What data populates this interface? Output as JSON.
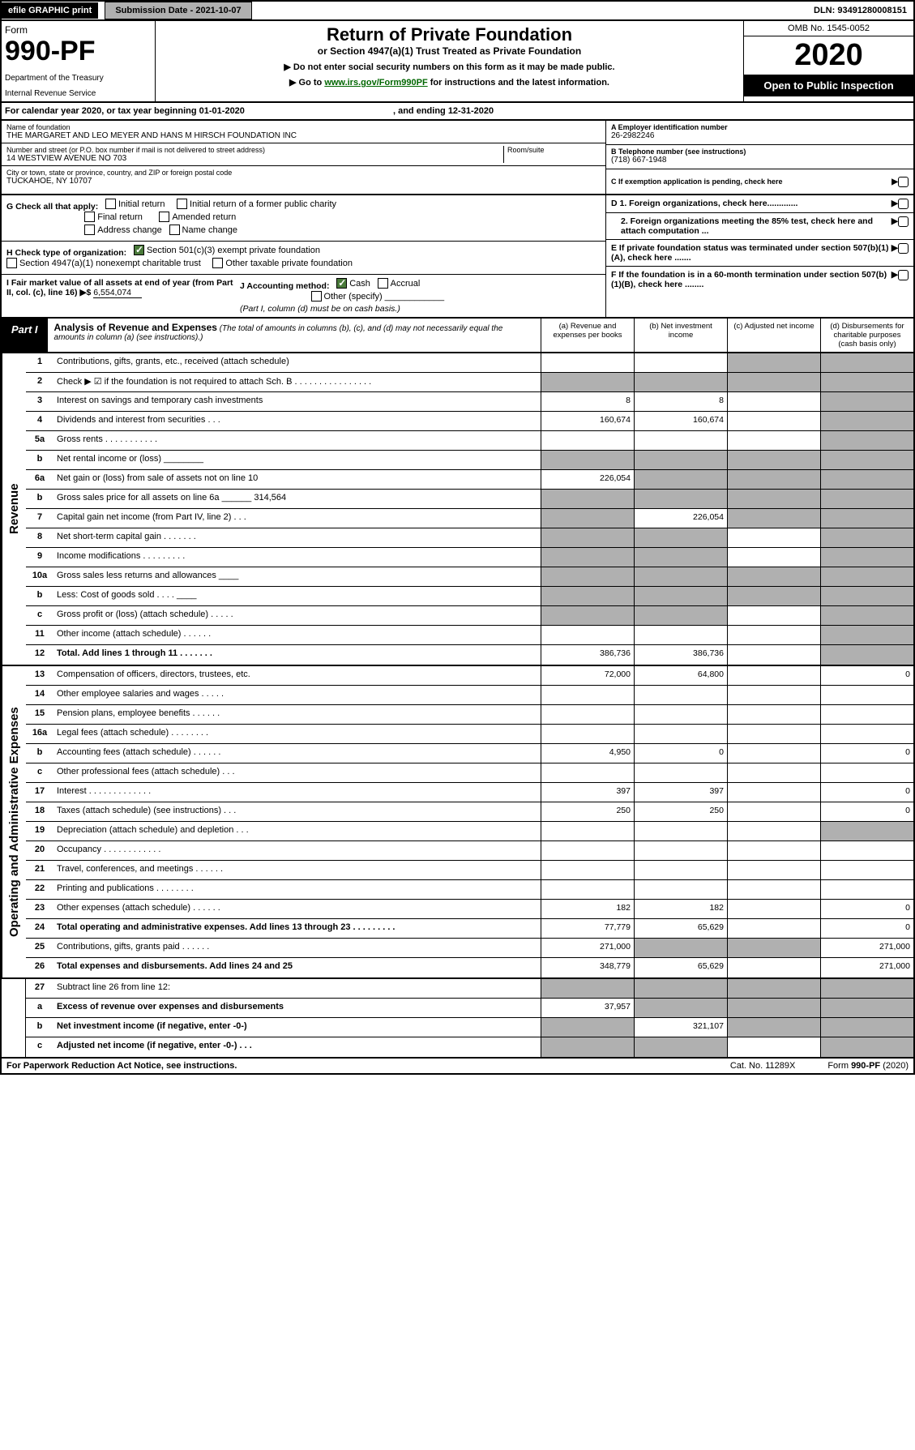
{
  "top": {
    "efile_g": "efile GRAPHIC",
    "print": "print",
    "submission": "Submission Date - 2021-10-07",
    "dln": "DLN: 93491280008151"
  },
  "header": {
    "form_word": "Form",
    "form_num": "990-PF",
    "dept": "Department of the Treasury",
    "irs": "Internal Revenue Service",
    "title": "Return of Private Foundation",
    "subtitle": "or Section 4947(a)(1) Trust Treated as Private Foundation",
    "note1": "▶ Do not enter social security numbers on this form as it may be made public.",
    "note2_pre": "▶ Go to ",
    "note2_link": "www.irs.gov/Form990PF",
    "note2_post": " for instructions and the latest information.",
    "omb": "OMB No. 1545-0052",
    "year": "2020",
    "open": "Open to Public Inspection"
  },
  "cal": "For calendar year 2020, or tax year beginning 01-01-2020",
  "cal_end": ", and ending 12-31-2020",
  "info": {
    "name_lbl": "Name of foundation",
    "name": "THE MARGARET AND LEO MEYER AND HANS M HIRSCH FOUNDATION INC",
    "addr_lbl": "Number and street (or P.O. box number if mail is not delivered to street address)",
    "addr": "14 WESTVIEW AVENUE NO 703",
    "room_lbl": "Room/suite",
    "city_lbl": "City or town, state or province, country, and ZIP or foreign postal code",
    "city": "TUCKAHOE, NY  10707",
    "ein_lbl": "A Employer identification number",
    "ein": "26-2982246",
    "phone_lbl": "B Telephone number (see instructions)",
    "phone": "(718) 667-1948",
    "c_lbl": "C If exemption application is pending, check here"
  },
  "g": {
    "label": "G Check all that apply:",
    "initial": "Initial return",
    "initial_former": "Initial return of a former public charity",
    "final": "Final return",
    "amended": "Amended return",
    "addr_change": "Address change",
    "name_change": "Name change"
  },
  "h": {
    "label": "H Check type of organization:",
    "s501": "Section 501(c)(3) exempt private foundation",
    "s4947": "Section 4947(a)(1) nonexempt charitable trust",
    "other_tax": "Other taxable private foundation"
  },
  "d": {
    "d1": "D 1. Foreign organizations, check here.............",
    "d2": "2. Foreign organizations meeting the 85% test, check here and attach computation ...",
    "e": "E  If private foundation status was terminated under section 507(b)(1)(A), check here .......",
    "f": "F  If the foundation is in a 60-month termination under section 507(b)(1)(B), check here ........"
  },
  "i": {
    "label": "I Fair market value of all assets at end of year (from Part II, col. (c), line 16) ▶$",
    "val": "6,554,074"
  },
  "j": {
    "label": "J Accounting method:",
    "cash": "Cash",
    "accrual": "Accrual",
    "other": "Other (specify)",
    "note": "(Part I, column (d) must be on cash basis.)"
  },
  "part1": {
    "label": "Part I",
    "title": "Analysis of Revenue and Expenses",
    "desc": "(The total of amounts in columns (b), (c), and (d) may not necessarily equal the amounts in column (a) (see instructions).)",
    "col_a": "(a)   Revenue and expenses per books",
    "col_b": "(b)  Net investment income",
    "col_c": "(c)  Adjusted net income",
    "col_d": "(d)  Disbursements for charitable purposes (cash basis only)"
  },
  "side_rev": "Revenue",
  "side_exp": "Operating and Administrative Expenses",
  "rows": [
    {
      "n": "1",
      "l": "Contributions, gifts, grants, etc., received (attach schedule)",
      "a": "",
      "b": "",
      "c": "s",
      "d": "s"
    },
    {
      "n": "2",
      "l": "Check ▶ ☑ if the foundation is not required to attach Sch. B   .  .  .  .  .  .  .  .  .  .  .  .  .  .  .  .",
      "a": "s",
      "b": "s",
      "c": "s",
      "d": "s"
    },
    {
      "n": "3",
      "l": "Interest on savings and temporary cash investments",
      "a": "8",
      "b": "8",
      "c": "",
      "d": "s"
    },
    {
      "n": "4",
      "l": "Dividends and interest from securities   .  .  .",
      "a": "160,674",
      "b": "160,674",
      "c": "",
      "d": "s"
    },
    {
      "n": "5a",
      "l": "Gross rents   .  .  .  .  .  .  .  .  .  .  .",
      "a": "",
      "b": "",
      "c": "",
      "d": "s"
    },
    {
      "n": "b",
      "l": "Net rental income or (loss)  ________",
      "a": "s",
      "b": "s",
      "c": "s",
      "d": "s"
    },
    {
      "n": "6a",
      "l": "Net gain or (loss) from sale of assets not on line 10",
      "a": "226,054",
      "b": "s",
      "c": "s",
      "d": "s"
    },
    {
      "n": "b",
      "l": "Gross sales price for all assets on line 6a ______ 314,564",
      "a": "s",
      "b": "s",
      "c": "s",
      "d": "s"
    },
    {
      "n": "7",
      "l": "Capital gain net income (from Part IV, line 2)  .  .  .",
      "a": "s",
      "b": "226,054",
      "c": "s",
      "d": "s"
    },
    {
      "n": "8",
      "l": "Net short-term capital gain  .  .  .  .  .  .  .",
      "a": "s",
      "b": "s",
      "c": "",
      "d": "s"
    },
    {
      "n": "9",
      "l": "Income modifications  .  .  .  .  .  .  .  .  .",
      "a": "s",
      "b": "s",
      "c": "",
      "d": "s"
    },
    {
      "n": "10a",
      "l": "Gross sales less returns and allowances ____",
      "a": "s",
      "b": "s",
      "c": "s",
      "d": "s"
    },
    {
      "n": "b",
      "l": "Less: Cost of goods sold   .  .  .  . ____",
      "a": "s",
      "b": "s",
      "c": "s",
      "d": "s"
    },
    {
      "n": "c",
      "l": "Gross profit or (loss) (attach schedule)  .  .  .  .  .",
      "a": "s",
      "b": "s",
      "c": "",
      "d": "s"
    },
    {
      "n": "11",
      "l": "Other income (attach schedule)   .  .  .  .  .  .",
      "a": "",
      "b": "",
      "c": "",
      "d": "s"
    },
    {
      "n": "12",
      "l": "Total. Add lines 1 through 11   .  .  .  .  .  .  .",
      "a": "386,736",
      "b": "386,736",
      "c": "",
      "d": "s",
      "bold": true
    }
  ],
  "exp_rows": [
    {
      "n": "13",
      "l": "Compensation of officers, directors, trustees, etc.",
      "a": "72,000",
      "b": "64,800",
      "c": "",
      "d": "0"
    },
    {
      "n": "14",
      "l": "Other employee salaries and wages   .  .  .  .  .",
      "a": "",
      "b": "",
      "c": "",
      "d": ""
    },
    {
      "n": "15",
      "l": "Pension plans, employee benefits   .  .  .  .  .  .",
      "a": "",
      "b": "",
      "c": "",
      "d": ""
    },
    {
      "n": "16a",
      "l": "Legal fees (attach schedule)  .  .  .  .  .  .  .  .",
      "a": "",
      "b": "",
      "c": "",
      "d": ""
    },
    {
      "n": "b",
      "l": "Accounting fees (attach schedule)  .  .  .  .  .  .",
      "a": "4,950",
      "b": "0",
      "c": "",
      "d": "0"
    },
    {
      "n": "c",
      "l": "Other professional fees (attach schedule)   .  .  .",
      "a": "",
      "b": "",
      "c": "",
      "d": ""
    },
    {
      "n": "17",
      "l": "Interest  .  .  .  .  .  .  .  .  .  .  .  .  .",
      "a": "397",
      "b": "397",
      "c": "",
      "d": "0"
    },
    {
      "n": "18",
      "l": "Taxes (attach schedule) (see instructions)   .  .  .",
      "a": "250",
      "b": "250",
      "c": "",
      "d": "0"
    },
    {
      "n": "19",
      "l": "Depreciation (attach schedule) and depletion  .  .  .",
      "a": "",
      "b": "",
      "c": "",
      "d": "s"
    },
    {
      "n": "20",
      "l": "Occupancy  .  .  .  .  .  .  .  .  .  .  .  .",
      "a": "",
      "b": "",
      "c": "",
      "d": ""
    },
    {
      "n": "21",
      "l": "Travel, conferences, and meetings  .  .  .  .  .  .",
      "a": "",
      "b": "",
      "c": "",
      "d": ""
    },
    {
      "n": "22",
      "l": "Printing and publications  .  .  .  .  .  .  .  .",
      "a": "",
      "b": "",
      "c": "",
      "d": ""
    },
    {
      "n": "23",
      "l": "Other expenses (attach schedule)  .  .  .  .  .  .",
      "a": "182",
      "b": "182",
      "c": "",
      "d": "0"
    },
    {
      "n": "24",
      "l": "Total operating and administrative expenses. Add lines 13 through 23  .  .  .  .  .  .  .  .  .",
      "a": "77,779",
      "b": "65,629",
      "c": "",
      "d": "0",
      "bold": true
    },
    {
      "n": "25",
      "l": "Contributions, gifts, grants paid   .  .  .  .  .  .",
      "a": "271,000",
      "b": "s",
      "c": "s",
      "d": "271,000"
    },
    {
      "n": "26",
      "l": "Total expenses and disbursements. Add lines 24 and 25",
      "a": "348,779",
      "b": "65,629",
      "c": "",
      "d": "271,000",
      "bold": true
    }
  ],
  "sub_rows": [
    {
      "n": "27",
      "l": "Subtract line 26 from line 12:",
      "a": "s",
      "b": "s",
      "c": "s",
      "d": "s"
    },
    {
      "n": "a",
      "l": "Excess of revenue over expenses and disbursements",
      "a": "37,957",
      "b": "s",
      "c": "s",
      "d": "s",
      "bold": true
    },
    {
      "n": "b",
      "l": "Net investment income (if negative, enter -0-)",
      "a": "s",
      "b": "321,107",
      "c": "s",
      "d": "s",
      "bold": true
    },
    {
      "n": "c",
      "l": "Adjusted net income (if negative, enter -0-)  .  .  .",
      "a": "s",
      "b": "s",
      "c": "",
      "d": "s",
      "bold": true
    }
  ],
  "footer": {
    "left": "For Paperwork Reduction Act Notice, see instructions.",
    "mid": "Cat. No. 11289X",
    "right": "Form 990-PF (2020)"
  }
}
